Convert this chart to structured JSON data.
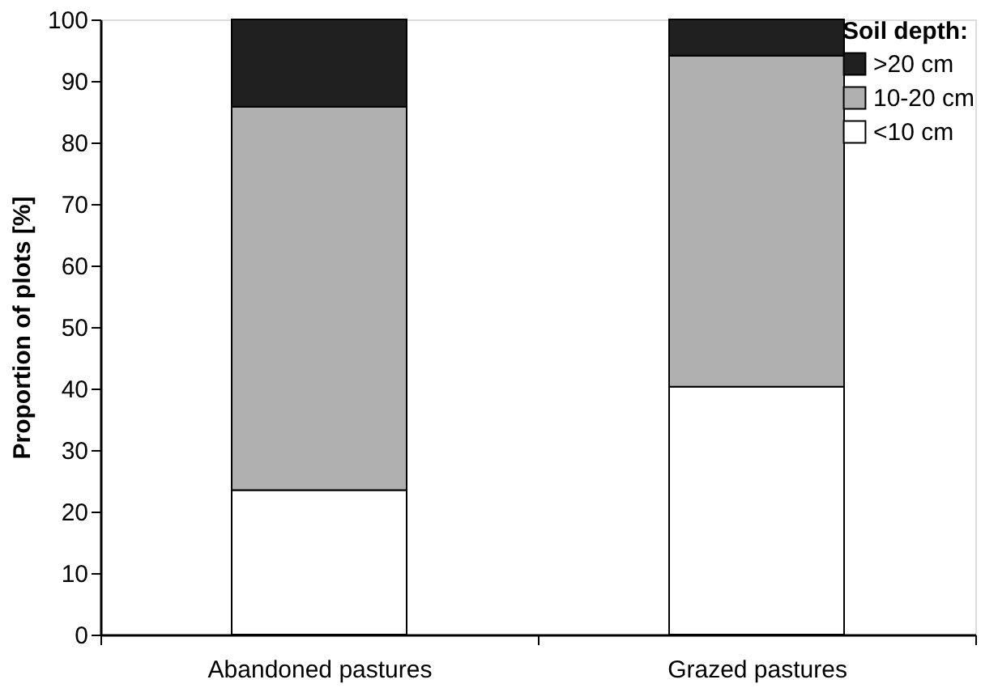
{
  "chart_data": {
    "type": "bar",
    "stacked": true,
    "ylabel": "Proportion of plots [%]",
    "legend_title": "Soil depth:",
    "legend": "top right",
    "grid": false,
    "categories": [
      "Abandoned pastures",
      "Grazed pastures"
    ],
    "series": [
      {
        "name": "<10 cm",
        "color": "#ffffff",
        "values": [
          23.5,
          40.3
        ]
      },
      {
        "name": "10-20 cm",
        "color": "#b0b0b0",
        "values": [
          62.3,
          53.8
        ]
      },
      {
        "name": ">20 cm",
        "color": "#202020",
        "values": [
          14.2,
          5.9
        ]
      }
    ],
    "ylim": [
      0,
      100
    ],
    "yticks": [
      0,
      10,
      20,
      30,
      40,
      50,
      60,
      70,
      80,
      90,
      100
    ]
  }
}
